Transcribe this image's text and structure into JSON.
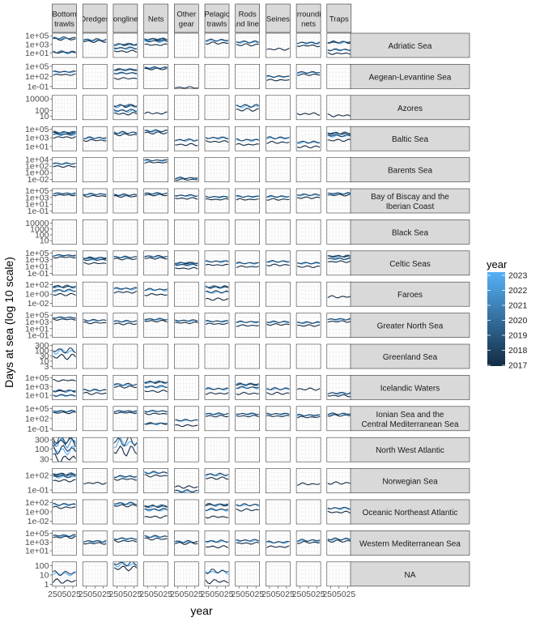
{
  "chart_data": {
    "type": "line",
    "title": "",
    "xlabel": "year",
    "ylabel": "Days at sea (log 10 scale)",
    "y_scale": "log10",
    "grid": true,
    "columns": [
      "Bottom trawls",
      "Dredges",
      "Longlines",
      "Nets",
      "Other gear",
      "Pelagic trawls",
      "Rods and lines",
      "Seines",
      "Surrounding nets",
      "Traps"
    ],
    "column_strip_labels": [
      [
        "Bottom",
        "trawls"
      ],
      [
        "Dredges"
      ],
      [
        "Longlines"
      ],
      [
        "Nets"
      ],
      [
        "Other",
        "gear"
      ],
      [
        "Pelagic",
        "trawls"
      ],
      [
        "Rods",
        "and lines"
      ],
      [
        "Seines"
      ],
      [
        "Surrounding",
        "nets"
      ],
      [
        "Traps"
      ]
    ],
    "x_tick_labels_bottom": "2017.5 2020.0 2022.5 2025.0 (overlapping, drawn as in figure)",
    "x_tick_text": "2505025",
    "rows": [
      {
        "label": [
          "Adriatic Sea"
        ],
        "yticks": [
          "1e+05",
          "1e+03",
          "1e+01"
        ],
        "ylog": [
          5,
          3,
          1
        ],
        "yr": [
          0,
          5.6
        ]
      },
      {
        "label": [
          "Aegean-Levantine Sea"
        ],
        "yticks": [
          "1e+05",
          "1e+02",
          "1e-01"
        ],
        "ylog": [
          5,
          2,
          -1
        ],
        "yr": [
          -1.6,
          5.6
        ]
      },
      {
        "label": [
          "Azores"
        ],
        "yticks": [
          "10000",
          "100",
          "10"
        ],
        "ylog": [
          4,
          2,
          1
        ],
        "yr": [
          0.4,
          4.6
        ]
      },
      {
        "label": [
          "Baltic Sea"
        ],
        "yticks": [
          "1e+05",
          "1e+03",
          "1e+01"
        ],
        "ylog": [
          5,
          3,
          1
        ],
        "yr": [
          0,
          5.6
        ]
      },
      {
        "label": [
          "Barents Sea"
        ],
        "yticks": [
          "1e+04",
          "1e+02",
          "1e+00",
          "1e-02"
        ],
        "ylog": [
          4,
          2,
          0,
          -2
        ],
        "yr": [
          -2.8,
          4.6
        ]
      },
      {
        "label": [
          "Bay of Biscay and the",
          "Iberian Coast"
        ],
        "yticks": [
          "1e+05",
          "1e+03",
          "1e+01",
          "1e-01"
        ],
        "ylog": [
          5,
          3,
          1,
          -1
        ],
        "yr": [
          -1.6,
          5.6
        ]
      },
      {
        "label": [
          "Black Sea"
        ],
        "yticks": [
          "10000",
          "1000",
          "100",
          "10"
        ],
        "ylog": [
          4,
          3,
          2,
          1
        ],
        "yr": [
          0.4,
          4.6
        ]
      },
      {
        "label": [
          "Celtic Seas"
        ],
        "yticks": [
          "1e+05",
          "1e+03",
          "1e+01",
          "1e-01"
        ],
        "ylog": [
          5,
          3,
          1,
          -1
        ],
        "yr": [
          -1.6,
          5.6
        ]
      },
      {
        "label": [
          "Faroes"
        ],
        "yticks": [
          "1e+02",
          "1e+00",
          "1e-02"
        ],
        "ylog": [
          2,
          0,
          -2
        ],
        "yr": [
          -2.6,
          2.6
        ]
      },
      {
        "label": [
          "Greater North Sea"
        ],
        "yticks": [
          "1e+05",
          "1e+03",
          "1e+01",
          "1e-01"
        ],
        "ylog": [
          5,
          3,
          1,
          -1
        ],
        "yr": [
          -1.6,
          5.6
        ]
      },
      {
        "label": [
          "Greenland Sea"
        ],
        "yticks": [
          "300",
          "100",
          "30",
          "10",
          "3"
        ],
        "ylog": [
          2.477,
          2,
          1.477,
          1,
          0.477
        ],
        "yr": [
          0.3,
          2.6
        ]
      },
      {
        "label": [
          "Icelandic Waters"
        ],
        "yticks": [
          "1e+05",
          "1e+03",
          "1e+01"
        ],
        "ylog": [
          5,
          3,
          1
        ],
        "yr": [
          0,
          5.6
        ]
      },
      {
        "label": [
          "Ionian Sea and the",
          "Central Mediterranean Sea"
        ],
        "yticks": [
          "1e+05",
          "1e+02",
          "1e-01"
        ],
        "ylog": [
          5,
          2,
          -1
        ],
        "yr": [
          -1.6,
          5.6
        ]
      },
      {
        "label": [
          "North West Atlantic"
        ],
        "yticks": [
          "300",
          "100",
          "30"
        ],
        "ylog": [
          2.477,
          2,
          1.477
        ],
        "yr": [
          1.35,
          2.6
        ]
      },
      {
        "label": [
          "Norwegian Sea"
        ],
        "yticks": [
          "1e+02",
          "1e-01"
        ],
        "ylog": [
          2,
          -1
        ],
        "yr": [
          -1.6,
          3.4
        ]
      },
      {
        "label": [
          "Oceanic Northeast Atlantic"
        ],
        "yticks": [
          "1e+02",
          "1e+00",
          "1e-02"
        ],
        "ylog": [
          2,
          0,
          -2
        ],
        "yr": [
          -2.6,
          2.6
        ]
      },
      {
        "label": [
          "Western Mediterranean Sea"
        ],
        "yticks": [
          "1e+05",
          "1e+03",
          "1e+01"
        ],
        "ylog": [
          5,
          3,
          1
        ],
        "yr": [
          0,
          5.6
        ]
      },
      {
        "label": [
          "NA"
        ],
        "yticks": [
          "100",
          "10",
          "1"
        ],
        "ylog": [
          2,
          1,
          0
        ],
        "yr": [
          -0.2,
          2.4
        ]
      }
    ],
    "legend": {
      "title": "year",
      "position": "right",
      "labels": [
        "2023",
        "2022",
        "2021",
        "2020",
        "2019",
        "2018",
        "2017"
      ],
      "colors": {
        "low": "#132B43",
        "high": "#56B1F7"
      }
    },
    "panel_series_description": "Each panel shows one line per year (2017-2023) of days at sea across months; values read as approximate log10 levels.",
    "panels": {
      "0-0": [
        4.3,
        4.5,
        1.2
      ],
      "0-1": [
        3.8,
        4.1
      ],
      "0-2": [
        1.5,
        2.2,
        3.0
      ],
      "0-3": [
        3.0,
        3.8,
        4.2
      ],
      "0-5": [
        3.4,
        4.0
      ],
      "0-6": [
        3.0,
        3.6
      ],
      "0-7": [
        2.0
      ],
      "0-8": [
        2.8,
        3.4
      ],
      "0-9": [
        1.0,
        1.8,
        3.5
      ],
      "1-0": [
        2.6,
        3.4
      ],
      "1-2": [
        1.5,
        3.0,
        4.0
      ],
      "1-3": [
        4.3,
        4.6
      ],
      "1-4": [
        -1.2
      ],
      "1-7": [
        1.0,
        2.0
      ],
      "1-8": [
        2.6,
        3.2
      ],
      "2-2": [
        1.5,
        2.0,
        2.8
      ],
      "2-3": [
        1.6
      ],
      "2-6": [
        2.2,
        2.8
      ],
      "2-8": [
        1.5
      ],
      "2-9": [
        1.2
      ],
      "3-0": [
        3.2,
        3.8,
        4.2
      ],
      "3-1": [
        2.5,
        3.0
      ],
      "3-2": [
        3.8,
        4.2
      ],
      "3-3": [
        4.2,
        4.6
      ],
      "3-4": [
        1.5,
        2.5
      ],
      "3-5": [
        2.2,
        3.0
      ],
      "3-6": [
        1.5,
        2.5
      ],
      "3-7": [
        2.0,
        3.0
      ],
      "3-8": [
        1.0,
        2.0
      ],
      "3-9": [
        2.5,
        3.5,
        4.0
      ],
      "4-0": [
        2.0,
        2.8
      ],
      "4-3": [
        3.2,
        3.8
      ],
      "4-4": [
        -2.0,
        -1.6
      ],
      "5-0": [
        3.8,
        4.2
      ],
      "5-1": [
        3.5,
        4.0
      ],
      "5-2": [
        3.4,
        3.8
      ],
      "5-3": [
        3.8,
        4.2
      ],
      "5-4": [
        2.8,
        3.6
      ],
      "5-5": [
        2.5,
        3.2
      ],
      "5-6": [
        2.5,
        3.3
      ],
      "5-7": [
        2.5,
        3.3
      ],
      "5-8": [
        3.0,
        3.8
      ],
      "5-9": [
        3.8,
        4.2
      ],
      "7-0": [
        3.8,
        4.3
      ],
      "7-1": [
        2.0,
        3.0,
        3.5
      ],
      "7-2": [
        3.3,
        3.8
      ],
      "7-3": [
        3.5,
        4.0
      ],
      "7-4": [
        0.5,
        1.5,
        2.0
      ],
      "7-5": [
        1.5,
        2.5
      ],
      "7-6": [
        1.0,
        2.0
      ],
      "7-7": [
        1.5,
        2.5
      ],
      "7-8": [
        1.0,
        2.0
      ],
      "7-9": [
        2.5,
        3.3,
        4.0
      ],
      "8-0": [
        0.0,
        0.8,
        1.6
      ],
      "8-2": [
        0.5,
        1.2
      ],
      "8-3": [
        0.0,
        1.0
      ],
      "8-5": [
        -1.0,
        0.5,
        1.5
      ],
      "8-9": [
        -0.5
      ],
      "9-0": [
        3.8,
        4.3
      ],
      "9-1": [
        2.8,
        3.5
      ],
      "9-2": [
        2.5,
        3.2
      ],
      "9-3": [
        3.3,
        3.8
      ],
      "9-4": [
        2.8,
        3.4
      ],
      "9-5": [
        2.5,
        3.2
      ],
      "9-6": [
        2.0,
        3.0
      ],
      "9-7": [
        2.3,
        3.0
      ],
      "9-8": [
        2.0,
        2.8
      ],
      "9-9": [
        3.2,
        3.8
      ],
      "10-0": [
        1.5,
        2.0
      ],
      "11-0": [
        4.5,
        1.0,
        2.0
      ],
      "11-1": [
        1.5,
        2.2
      ],
      "11-2": [
        3.0,
        3.5
      ],
      "11-3": [
        2.0,
        3.0,
        4.0
      ],
      "11-5": [
        1.5,
        2.5
      ],
      "11-6": [
        1.5,
        2.8,
        3.5
      ],
      "11-7": [
        1.5,
        2.5
      ],
      "11-8": [
        2.5
      ],
      "11-9": [
        1.0,
        1.5
      ],
      "12-0": [
        3.8,
        4.2
      ],
      "12-2": [
        3.8,
        4.2
      ],
      "12-3": [
        3.5,
        4.2,
        0.5
      ],
      "12-4": [
        0.0,
        1.5
      ],
      "12-5": [
        2.8,
        3.4
      ],
      "12-6": [
        2.8,
        3.4
      ],
      "12-7": [
        2.8,
        3.4
      ],
      "12-8": [
        2.5,
        3.0
      ],
      "12-9": [
        3.0,
        3.4
      ],
      "13-0": [
        1.6,
        2.0,
        2.4
      ],
      "13-2": [
        2.0,
        2.4
      ],
      "14-0": [
        1.0,
        1.8,
        2.2
      ],
      "14-1": [
        0.5
      ],
      "14-2": [
        1.3,
        1.8
      ],
      "14-3": [
        2.0,
        2.6
      ],
      "14-4": [
        -0.3,
        -1.2
      ],
      "14-5": [
        1.5,
        2.2
      ],
      "14-8": [
        0.3
      ],
      "14-9": [
        0.5
      ],
      "15-0": [
        1.0,
        1.6
      ],
      "15-2": [
        1.4,
        1.8
      ],
      "15-3": [
        -1.0,
        0.5,
        1.2
      ],
      "15-5": [
        -1.0,
        0.5,
        1.5
      ],
      "15-6": [
        0.5,
        1.5
      ],
      "15-9": [
        0.0,
        0.8
      ],
      "16-0": [
        4.2,
        4.5
      ],
      "16-1": [
        2.8,
        3.2
      ],
      "16-2": [
        3.3,
        3.8
      ],
      "16-3": [
        3.8,
        4.3
      ],
      "16-4": [
        2.8,
        3.1
      ],
      "16-5": [
        2.0,
        3.2
      ],
      "16-6": [
        2.8,
        3.4
      ],
      "16-7": [
        2.0,
        3.0
      ],
      "16-8": [
        3.0,
        3.4
      ],
      "16-9": [
        3.3,
        3.7
      ],
      "17-0": [
        0.4,
        1.2
      ],
      "17-2": [
        1.8,
        2.2
      ],
      "17-5": [
        0.4,
        1.4
      ]
    }
  }
}
